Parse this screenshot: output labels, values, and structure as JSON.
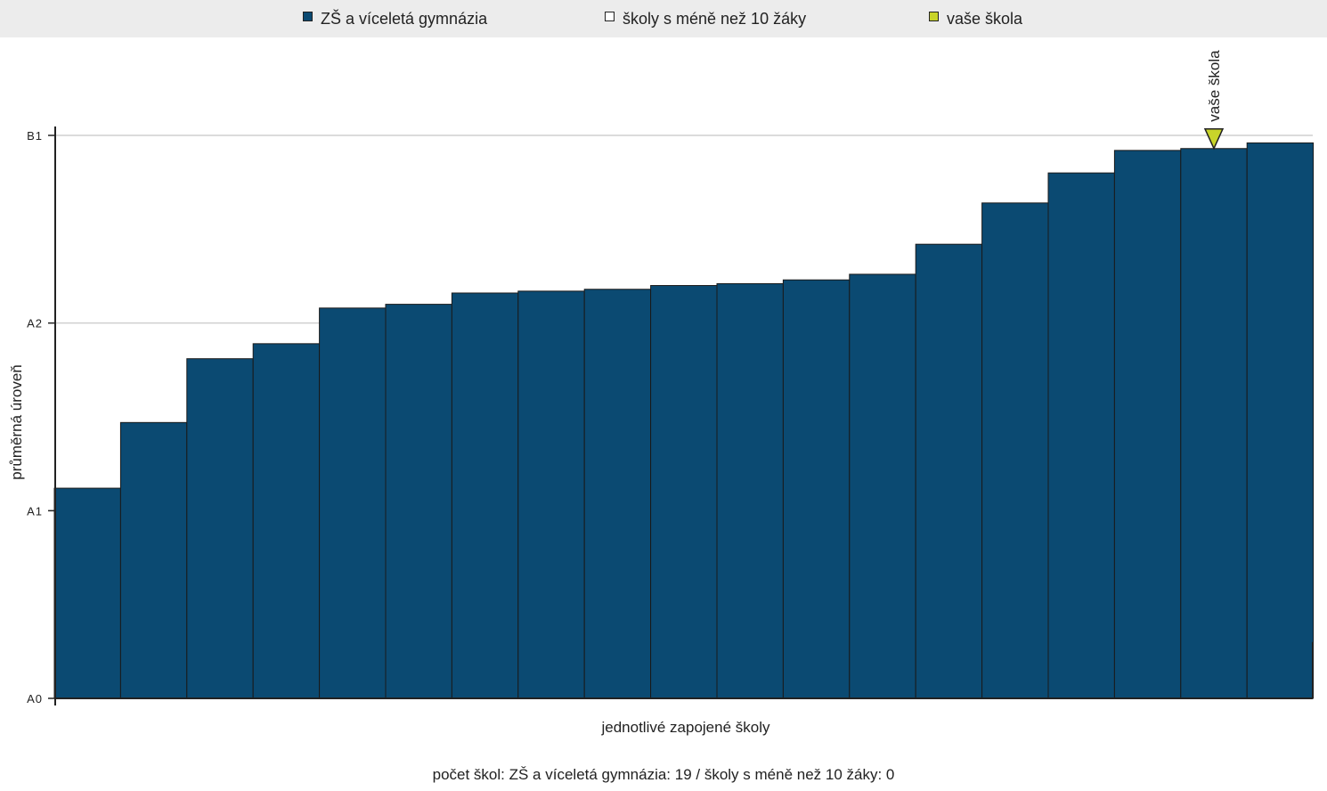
{
  "legend": {
    "items": [
      {
        "label": "ZŠ a víceletá gymnázia",
        "color": "#0b4a72",
        "icon": "square-swatch"
      },
      {
        "label": "školy s méně než 10 žáky",
        "color": "#ffffff",
        "icon": "square-swatch"
      },
      {
        "label": "vaše škola",
        "color": "#c8d42a",
        "icon": "square-swatch"
      }
    ]
  },
  "chart_data": {
    "type": "bar",
    "xlabel": "jednotlivé zapojené školy",
    "ylabel": "průměrná úroveň",
    "y_ticks": [
      "A0",
      "A1",
      "A2",
      "B1"
    ],
    "ylim": [
      0,
      3
    ],
    "grid": true,
    "bar_color": "#0b4a72",
    "highlight_color": "#c8d42a",
    "values": [
      1.12,
      1.47,
      1.81,
      1.89,
      2.08,
      2.1,
      2.16,
      2.17,
      2.18,
      2.2,
      2.21,
      2.23,
      2.26,
      2.42,
      2.64,
      2.8,
      2.92,
      2.93,
      2.96
    ],
    "highlight": {
      "index": 17,
      "label": "vaše škola"
    }
  },
  "footer": {
    "note": "počet škol: ZŠ a víceletá gymnázia: 19 / školy s méně než 10 žáky: 0"
  }
}
